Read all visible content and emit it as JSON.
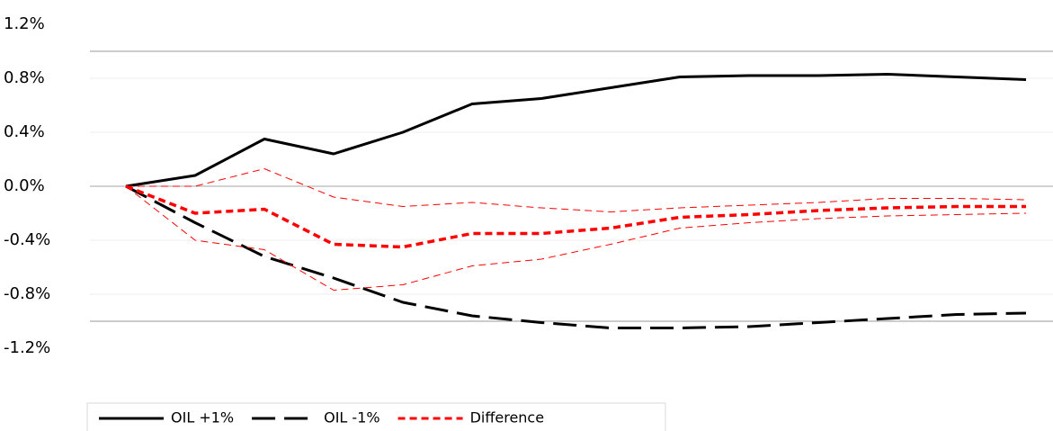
{
  "chart_data": {
    "type": "line",
    "categories": [
      null,
      null,
      null,
      null,
      null,
      null,
      null,
      null,
      null,
      null,
      null,
      null,
      null,
      null
    ],
    "series": [
      {
        "name": "OIL +1%",
        "color": "#000000",
        "dash": "solid",
        "width": 3,
        "values": [
          0,
          0.08,
          0.35,
          0.24,
          0.4,
          0.61,
          0.65,
          0.73,
          0.81,
          0.82,
          0.82,
          0.83,
          0.81,
          0.79
        ]
      },
      {
        "name": "OIL -1%",
        "color": "#000000",
        "dash": "long",
        "width": 3,
        "values": [
          0,
          -0.27,
          -0.52,
          -0.68,
          -0.86,
          -0.96,
          -1.01,
          -1.05,
          -1.05,
          -1.04,
          -1.01,
          -0.98,
          -0.95,
          -0.94
        ]
      },
      {
        "name": "Difference",
        "color": "#ff0000",
        "dash": "short",
        "width": 3.5,
        "values": [
          0,
          -0.2,
          -0.17,
          -0.43,
          -0.45,
          -0.35,
          -0.35,
          -0.31,
          -0.23,
          -0.21,
          -0.18,
          -0.16,
          -0.15,
          -0.15
        ]
      },
      {
        "color": "#ff0000",
        "dash": "short",
        "width": 1,
        "values": [
          0,
          0.0,
          0.13,
          -0.08,
          -0.15,
          -0.12,
          -0.16,
          -0.19,
          -0.16,
          -0.14,
          -0.12,
          -0.09,
          -0.09,
          -0.1
        ]
      },
      {
        "color": "#ff0000",
        "dash": "short",
        "width": 1,
        "values": [
          0,
          -0.4,
          -0.47,
          -0.77,
          -0.73,
          -0.59,
          -0.54,
          -0.43,
          -0.31,
          -0.27,
          -0.24,
          -0.22,
          -0.21,
          -0.2
        ]
      }
    ],
    "ylim": [
      -1.2,
      1.2
    ],
    "yticks": [
      {
        "value": -1.2,
        "label": "-1.2%"
      },
      {
        "value": -0.8,
        "label": "-0.8%"
      },
      {
        "value": -0.4,
        "label": "-0.4%"
      },
      {
        "value": 0,
        "label": "0.0%"
      },
      {
        "value": 0.4,
        "label": "0.4%"
      },
      {
        "value": 0.8,
        "label": "0.8%"
      },
      {
        "value": 1.2,
        "label": "1.2%"
      }
    ],
    "grid": true,
    "legend": "bottom"
  }
}
